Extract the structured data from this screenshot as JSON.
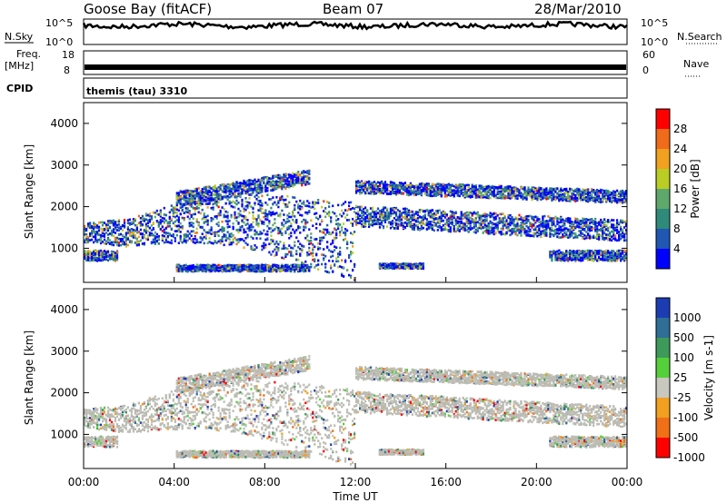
{
  "header": {
    "station": "Goose Bay (fitACF)",
    "beam": "Beam 07",
    "date": "28/Mar/2010"
  },
  "strips": {
    "nsky_label": "N.Sky",
    "nsearch_label": "N.Search",
    "noise_ticks_left": [
      "10^5",
      "10^0"
    ],
    "noise_ticks_right": [
      "10^5",
      "10^0"
    ],
    "freq_label_line1": "Freq.",
    "freq_label_line2": "[MHz]",
    "freq_ticks": [
      "18",
      "8"
    ],
    "nave_label": "Nave",
    "nave_ticks": [
      "60",
      "0"
    ],
    "cpid_label": "CPID",
    "cpid_value": "themis (tau) 3310"
  },
  "chart_data": [
    {
      "type": "heatmap",
      "title": "",
      "xlabel": "",
      "ylabel": "Slant Range [km]",
      "ylim": [
        180,
        4500
      ],
      "y_ticks": [
        "1000",
        "2000",
        "3000",
        "4000"
      ],
      "colorbar_label": "Power [dB]",
      "colorbar_ticks": [
        "4",
        "8",
        "12",
        "16",
        "20",
        "24",
        "28"
      ],
      "colorscale": [
        "#0000ff",
        "#1f57b3",
        "#2f8a7a",
        "#5fa86b",
        "#b9cd25",
        "#f1a020",
        "#f06b1a",
        "#ff0000"
      ],
      "x_ticks": [
        "00:00",
        "04:00",
        "08:00",
        "12:00",
        "16:00",
        "20:00",
        "00:00"
      ]
    },
    {
      "type": "heatmap",
      "title": "",
      "xlabel": "Time UT",
      "ylabel": "Slant Range [km]",
      "ylim": [
        180,
        4500
      ],
      "y_ticks": [
        "1000",
        "2000",
        "3000",
        "4000"
      ],
      "colorbar_label": "Velocity [m s-1]",
      "colorbar_ticks": [
        "1000",
        "500",
        "100",
        "25",
        "-25",
        "-100",
        "-500",
        "-1000"
      ],
      "colorscale": [
        "#1c3cb4",
        "#2f6e96",
        "#3d9a5a",
        "#56d03a",
        "#c8c8bf",
        "#f2a020",
        "#f07018",
        "#ff0000"
      ],
      "x_ticks": [
        "00:00",
        "04:00",
        "08:00",
        "12:00",
        "16:00",
        "20:00",
        "00:00"
      ]
    }
  ],
  "colors": {
    "ground_scatter": "#bcbcb4",
    "frame": "#000000"
  }
}
